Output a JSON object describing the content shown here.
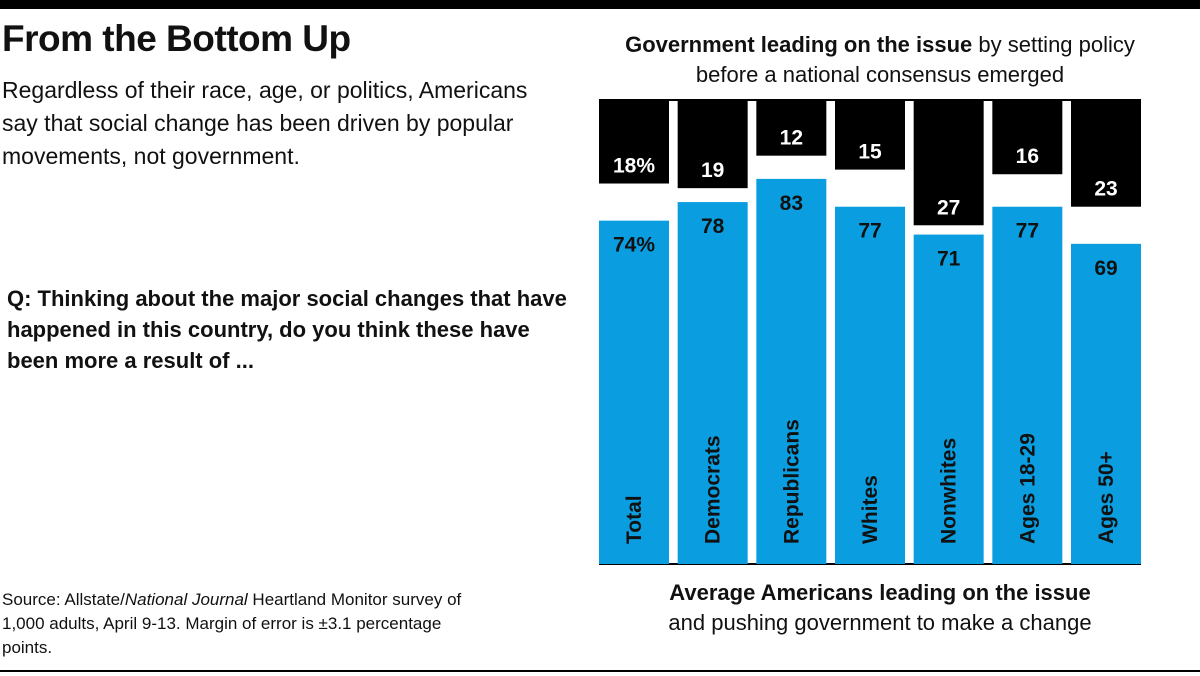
{
  "title": "From the Bottom Up",
  "subtitle": "Regardless of their race, age, or politics, Americans say that social change has been driven by popular movements, not government.",
  "question": "Q: Thinking about the major social changes that have happened in this country, do you think these have been more a result of ...",
  "source": {
    "prefix": "Source: Allstate/",
    "italic": "National Journal",
    "suffix": " Heartland Monitor survey of 1,000 adults, April 9-13. Margin of error is ±3.1 percentage points."
  },
  "government_label": {
    "bold": "Government leading on the issue",
    "rest": " by setting policy before a national consensus emerged"
  },
  "americans_label": {
    "bold": "Average Americans leading on the issue",
    "rest": "and pushing government to make a change"
  },
  "colors": {
    "americans": "#0a9de0",
    "government": "#000000",
    "text_dark": "#111111",
    "text_light": "#ffffff"
  },
  "chart_data": {
    "type": "bar",
    "orientation": "vertical",
    "ylim": [
      0,
      100
    ],
    "categories": [
      "Total",
      "Democrats",
      "Republicans",
      "Whites",
      "Nonwhites",
      "Ages 18-29",
      "Ages 50+"
    ],
    "series": [
      {
        "name": "Average Americans leading on the issue",
        "values": [
          74,
          78,
          83,
          77,
          71,
          77,
          69
        ],
        "labels": [
          "74%",
          "78",
          "83",
          "77",
          "71",
          "77",
          "69"
        ],
        "anchor": "bottom",
        "color": "#0a9de0"
      },
      {
        "name": "Government leading on the issue",
        "values": [
          18,
          19,
          12,
          15,
          27,
          16,
          23
        ],
        "labels": [
          "18%",
          "19",
          "12",
          "15",
          "27",
          "16",
          "23"
        ],
        "anchor": "top",
        "color": "#000000"
      }
    ]
  }
}
